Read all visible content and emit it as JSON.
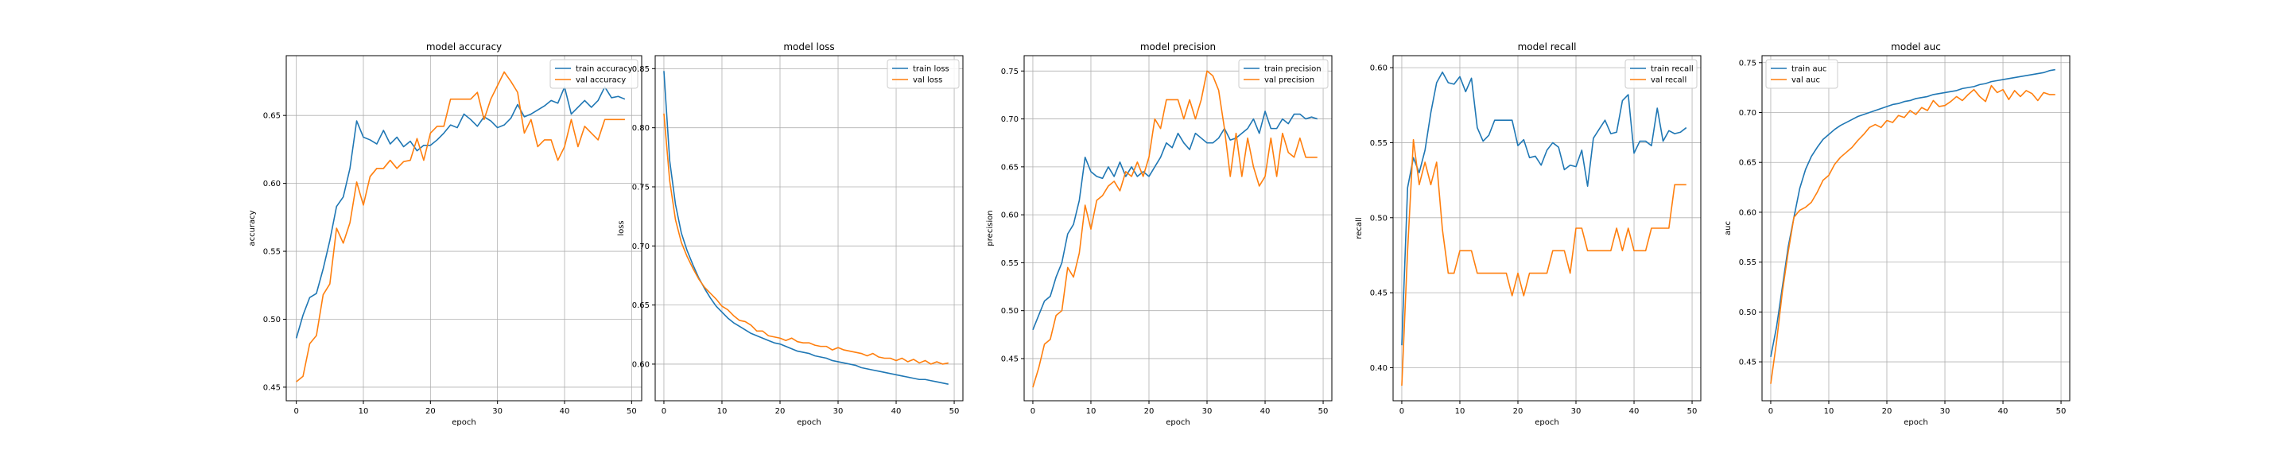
{
  "chart_data": [
    {
      "type": "line",
      "title": "model accuracy",
      "xlabel": "epoch",
      "ylabel": "accuracy",
      "xlim": [
        -1.5,
        51.5
      ],
      "ylim": [
        0.44,
        0.694
      ],
      "xticks": [
        0,
        10,
        20,
        30,
        40,
        50
      ],
      "xtick_labels": [
        "0",
        "10",
        "20",
        "30",
        "40",
        "50"
      ],
      "yticks": [
        0.45,
        0.5,
        0.55,
        0.6,
        0.65
      ],
      "ytick_labels": [
        "0.45",
        "0.50",
        "0.55",
        "0.60",
        "0.65"
      ],
      "grid": true,
      "legend_position": "top-right",
      "series": [
        {
          "name": "train accuracy",
          "color": "#1f77b4",
          "values": [
            0.486,
            0.503,
            0.516,
            0.519,
            0.537,
            0.558,
            0.583,
            0.59,
            0.611,
            0.646,
            0.634,
            0.632,
            0.629,
            0.639,
            0.629,
            0.634,
            0.627,
            0.631,
            0.624,
            0.628,
            0.628,
            0.632,
            0.637,
            0.643,
            0.641,
            0.651,
            0.647,
            0.642,
            0.649,
            0.646,
            0.641,
            0.643,
            0.648,
            0.658,
            0.649,
            0.651,
            0.654,
            0.657,
            0.661,
            0.659,
            0.671,
            0.651,
            0.656,
            0.661,
            0.656,
            0.661,
            0.671,
            0.663,
            0.664,
            0.662
          ]
        },
        {
          "name": "val accuracy",
          "color": "#ff7f0e",
          "values": [
            0.454,
            0.458,
            0.482,
            0.488,
            0.518,
            0.526,
            0.567,
            0.556,
            0.571,
            0.601,
            0.584,
            0.605,
            0.611,
            0.611,
            0.617,
            0.611,
            0.616,
            0.617,
            0.633,
            0.617,
            0.637,
            0.642,
            0.642,
            0.662,
            0.662,
            0.662,
            0.662,
            0.667,
            0.647,
            0.662,
            0.672,
            0.682,
            0.675,
            0.667,
            0.637,
            0.647,
            0.627,
            0.632,
            0.632,
            0.617,
            0.627,
            0.647,
            0.627,
            0.642,
            0.637,
            0.632,
            0.647,
            0.647,
            0.647,
            0.647
          ]
        }
      ]
    },
    {
      "type": "line",
      "title": "model loss",
      "xlabel": "epoch",
      "ylabel": "loss",
      "xlim": [
        -1.5,
        51.5
      ],
      "ylim": [
        0.569,
        0.861
      ],
      "xticks": [
        0,
        10,
        20,
        30,
        40,
        50
      ],
      "xtick_labels": [
        "0",
        "10",
        "20",
        "30",
        "40",
        "50"
      ],
      "yticks": [
        0.6,
        0.65,
        0.7,
        0.75,
        0.8,
        0.85
      ],
      "ytick_labels": [
        "0.60",
        "0.65",
        "0.70",
        "0.75",
        "0.80",
        "0.85"
      ],
      "grid": true,
      "legend_position": "top-right",
      "series": [
        {
          "name": "train loss",
          "color": "#1f77b4",
          "values": [
            0.848,
            0.772,
            0.735,
            0.711,
            0.696,
            0.684,
            0.673,
            0.664,
            0.656,
            0.649,
            0.644,
            0.639,
            0.635,
            0.632,
            0.629,
            0.626,
            0.624,
            0.622,
            0.62,
            0.618,
            0.617,
            0.615,
            0.613,
            0.611,
            0.61,
            0.609,
            0.607,
            0.606,
            0.605,
            0.603,
            0.602,
            0.601,
            0.6,
            0.599,
            0.597,
            0.596,
            0.595,
            0.594,
            0.593,
            0.592,
            0.591,
            0.59,
            0.589,
            0.588,
            0.587,
            0.587,
            0.586,
            0.585,
            0.584,
            0.583
          ]
        },
        {
          "name": "val loss",
          "color": "#ff7f0e",
          "values": [
            0.812,
            0.755,
            0.722,
            0.703,
            0.691,
            0.681,
            0.672,
            0.665,
            0.66,
            0.655,
            0.649,
            0.646,
            0.641,
            0.637,
            0.636,
            0.633,
            0.628,
            0.628,
            0.624,
            0.623,
            0.622,
            0.62,
            0.622,
            0.619,
            0.618,
            0.618,
            0.616,
            0.615,
            0.615,
            0.612,
            0.614,
            0.612,
            0.611,
            0.61,
            0.609,
            0.607,
            0.609,
            0.606,
            0.605,
            0.605,
            0.603,
            0.605,
            0.602,
            0.604,
            0.601,
            0.603,
            0.6,
            0.602,
            0.6,
            0.601
          ]
        }
      ]
    },
    {
      "type": "line",
      "title": "model precision",
      "xlabel": "epoch",
      "ylabel": "precision",
      "xlim": [
        -1.5,
        51.5
      ],
      "ylim": [
        0.406,
        0.766
      ],
      "xticks": [
        0,
        10,
        20,
        30,
        40,
        50
      ],
      "xtick_labels": [
        "0",
        "10",
        "20",
        "30",
        "40",
        "50"
      ],
      "yticks": [
        0.45,
        0.5,
        0.55,
        0.6,
        0.65,
        0.7,
        0.75
      ],
      "ytick_labels": [
        "0.45",
        "0.50",
        "0.55",
        "0.60",
        "0.65",
        "0.70",
        "0.75"
      ],
      "grid": true,
      "legend_position": "top-right",
      "series": [
        {
          "name": "train precision",
          "color": "#1f77b4",
          "values": [
            0.48,
            0.495,
            0.51,
            0.515,
            0.535,
            0.55,
            0.58,
            0.59,
            0.615,
            0.66,
            0.645,
            0.64,
            0.638,
            0.65,
            0.64,
            0.655,
            0.64,
            0.65,
            0.64,
            0.645,
            0.64,
            0.65,
            0.66,
            0.675,
            0.67,
            0.685,
            0.675,
            0.668,
            0.685,
            0.68,
            0.675,
            0.675,
            0.68,
            0.69,
            0.678,
            0.68,
            0.685,
            0.69,
            0.7,
            0.685,
            0.708,
            0.69,
            0.69,
            0.7,
            0.695,
            0.705,
            0.705,
            0.7,
            0.702,
            0.7
          ]
        },
        {
          "name": "val precision",
          "color": "#ff7f0e",
          "values": [
            0.42,
            0.44,
            0.465,
            0.47,
            0.495,
            0.5,
            0.545,
            0.535,
            0.56,
            0.61,
            0.585,
            0.615,
            0.62,
            0.63,
            0.635,
            0.625,
            0.645,
            0.64,
            0.655,
            0.64,
            0.66,
            0.7,
            0.69,
            0.72,
            0.72,
            0.72,
            0.7,
            0.72,
            0.7,
            0.72,
            0.75,
            0.745,
            0.73,
            0.69,
            0.64,
            0.685,
            0.64,
            0.68,
            0.65,
            0.63,
            0.64,
            0.68,
            0.64,
            0.685,
            0.665,
            0.66,
            0.68,
            0.66,
            0.66,
            0.66
          ]
        }
      ]
    },
    {
      "type": "line",
      "title": "model recall",
      "xlabel": "epoch",
      "ylabel": "recall",
      "xlim": [
        -1.5,
        51.5
      ],
      "ylim": [
        0.378,
        0.608
      ],
      "xticks": [
        0,
        10,
        20,
        30,
        40,
        50
      ],
      "xtick_labels": [
        "0",
        "10",
        "20",
        "30",
        "40",
        "50"
      ],
      "yticks": [
        0.4,
        0.45,
        0.5,
        0.55,
        0.6
      ],
      "ytick_labels": [
        "0.40",
        "0.45",
        "0.50",
        "0.55",
        "0.60"
      ],
      "grid": true,
      "legend_position": "top-right",
      "series": [
        {
          "name": "train recall",
          "color": "#1f77b4",
          "values": [
            0.415,
            0.52,
            0.54,
            0.53,
            0.545,
            0.57,
            0.59,
            0.597,
            0.59,
            0.589,
            0.594,
            0.584,
            0.593,
            0.56,
            0.551,
            0.555,
            0.565,
            0.565,
            0.565,
            0.565,
            0.548,
            0.552,
            0.54,
            0.541,
            0.535,
            0.545,
            0.55,
            0.547,
            0.532,
            0.535,
            0.534,
            0.545,
            0.521,
            0.553,
            0.559,
            0.565,
            0.556,
            0.557,
            0.578,
            0.582,
            0.543,
            0.551,
            0.551,
            0.548,
            0.573,
            0.551,
            0.558,
            0.556,
            0.557,
            0.56
          ]
        },
        {
          "name": "val recall",
          "color": "#ff7f0e",
          "values": [
            0.388,
            0.478,
            0.552,
            0.522,
            0.537,
            0.522,
            0.537,
            0.492,
            0.463,
            0.463,
            0.478,
            0.478,
            0.478,
            0.463,
            0.463,
            0.463,
            0.463,
            0.463,
            0.463,
            0.448,
            0.463,
            0.448,
            0.463,
            0.463,
            0.463,
            0.463,
            0.478,
            0.478,
            0.478,
            0.463,
            0.493,
            0.493,
            0.478,
            0.478,
            0.478,
            0.478,
            0.478,
            0.493,
            0.478,
            0.493,
            0.478,
            0.478,
            0.478,
            0.493,
            0.493,
            0.493,
            0.493,
            0.522,
            0.522,
            0.522
          ]
        }
      ]
    },
    {
      "type": "line",
      "title": "model auc",
      "xlabel": "epoch",
      "ylabel": "auc",
      "xlim": [
        -1.5,
        51.5
      ],
      "ylim": [
        0.411,
        0.757
      ],
      "xticks": [
        0,
        10,
        20,
        30,
        40,
        50
      ],
      "xtick_labels": [
        "0",
        "10",
        "20",
        "30",
        "40",
        "50"
      ],
      "yticks": [
        0.45,
        0.5,
        0.55,
        0.6,
        0.65,
        0.7,
        0.75
      ],
      "ytick_labels": [
        "0.45",
        "0.50",
        "0.55",
        "0.60",
        "0.65",
        "0.70",
        "0.75"
      ],
      "grid": true,
      "legend_position": "top-left",
      "series": [
        {
          "name": "train auc",
          "color": "#1f77b4",
          "values": [
            0.455,
            0.485,
            0.525,
            0.565,
            0.595,
            0.624,
            0.643,
            0.656,
            0.665,
            0.673,
            0.678,
            0.683,
            0.687,
            0.69,
            0.693,
            0.696,
            0.698,
            0.7,
            0.702,
            0.704,
            0.706,
            0.708,
            0.709,
            0.711,
            0.712,
            0.714,
            0.715,
            0.716,
            0.718,
            0.719,
            0.72,
            0.721,
            0.722,
            0.724,
            0.725,
            0.726,
            0.728,
            0.729,
            0.731,
            0.732,
            0.733,
            0.734,
            0.735,
            0.736,
            0.737,
            0.738,
            0.739,
            0.74,
            0.742,
            0.743
          ]
        },
        {
          "name": "val auc",
          "color": "#ff7f0e",
          "values": [
            0.428,
            0.47,
            0.52,
            0.56,
            0.595,
            0.602,
            0.605,
            0.61,
            0.62,
            0.632,
            0.637,
            0.648,
            0.655,
            0.66,
            0.665,
            0.672,
            0.678,
            0.685,
            0.688,
            0.685,
            0.692,
            0.69,
            0.697,
            0.695,
            0.702,
            0.698,
            0.705,
            0.702,
            0.712,
            0.706,
            0.707,
            0.711,
            0.716,
            0.712,
            0.718,
            0.723,
            0.716,
            0.711,
            0.727,
            0.72,
            0.723,
            0.713,
            0.722,
            0.716,
            0.722,
            0.719,
            0.712,
            0.72,
            0.718,
            0.718
          ]
        }
      ]
    }
  ]
}
